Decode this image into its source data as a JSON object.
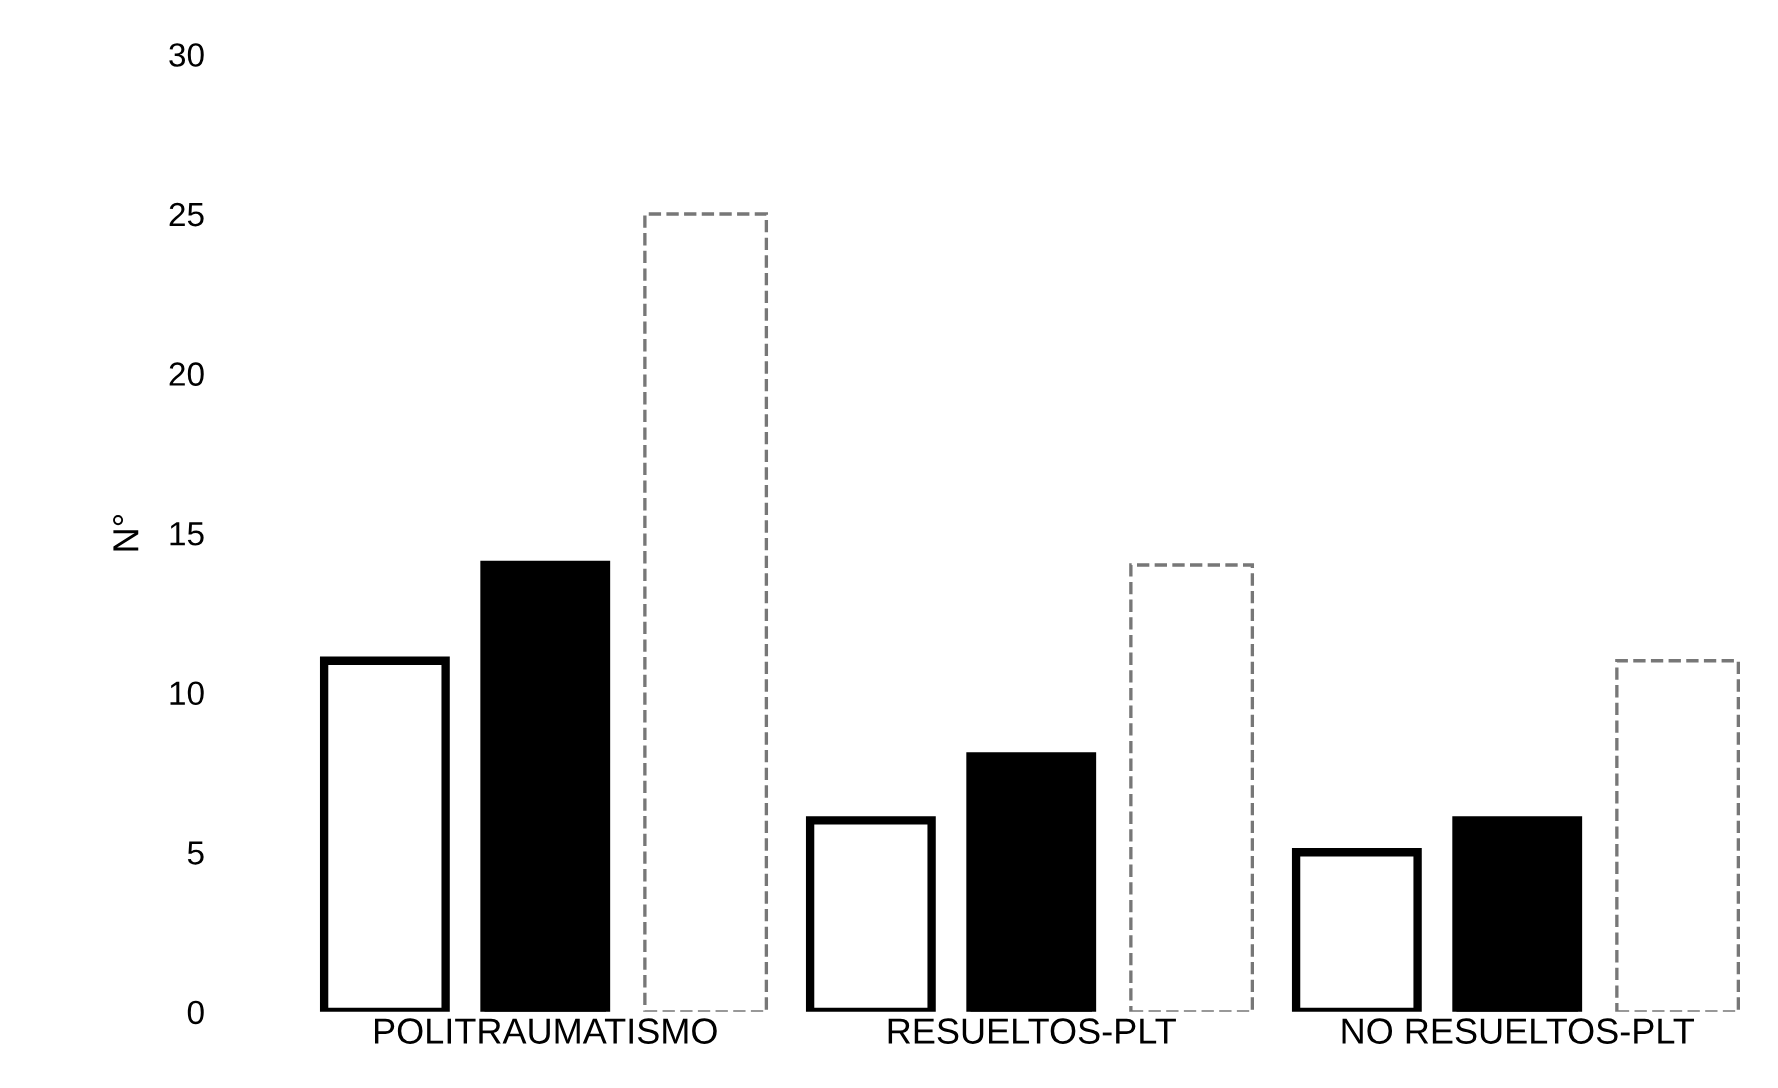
{
  "chart_data": {
    "type": "bar",
    "ylabel": "N°",
    "categories": [
      "POLITRAUMATISMO",
      "RESUELTOS-PLT",
      "NO RESUELTOS-PLT"
    ],
    "series": [
      {
        "color": "#ffffff",
        "values": [
          11,
          6,
          5
        ],
        "line_style": "solid"
      },
      {
        "color": "#000000",
        "values": [
          14,
          8,
          6
        ],
        "line_style": "solid"
      },
      {
        "color": "#ffffff",
        "values": [
          25,
          14,
          11
        ],
        "line_style": "dashed"
      }
    ],
    "ylim": [
      0,
      30
    ],
    "yticks": [
      0,
      5,
      10,
      15,
      20,
      25,
      30
    ],
    "grid": false,
    "legend": false
  }
}
